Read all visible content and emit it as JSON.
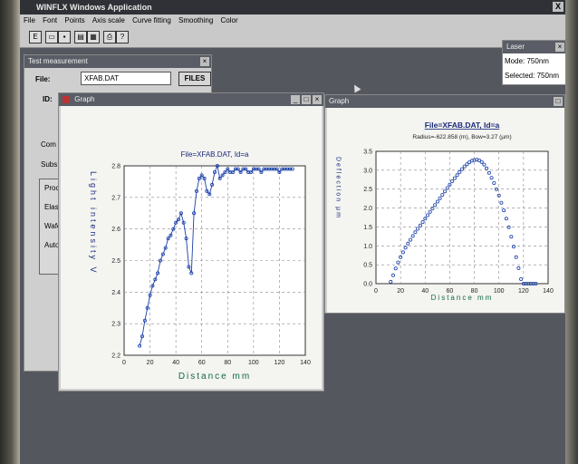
{
  "app": {
    "title": "WINFLX Windows Application",
    "close_glyph": "X"
  },
  "menu": [
    "File",
    "Font",
    "Points",
    "Axis scale",
    "Curve fitting",
    "Smoothing",
    "Color"
  ],
  "toolbar": [
    "E",
    "",
    "",
    "",
    "",
    "",
    "",
    "?"
  ],
  "laser": {
    "title": "Laser",
    "mode_label": "Mode:",
    "mode_value": "750nm",
    "selected_label": "Selected:",
    "selected_value": "750nm"
  },
  "test": {
    "title": "Test measurement",
    "file_label": "File:",
    "file_value": "XFAB.DAT",
    "files_button": "FILES",
    "id_label": "ID:",
    "partial_labels": [
      "Com",
      "Subs",
      "Proc",
      "Elast",
      "Wafe",
      "Auto"
    ]
  },
  "graph1": {
    "title": "Graph"
  },
  "graph2": {
    "title": "Graph"
  },
  "chart_data": [
    {
      "type": "line",
      "title": "File=XFAB.DAT, Id=a",
      "xlabel": "Distance mm",
      "ylabel": "Light intensity V",
      "xlim": [
        0,
        140
      ],
      "ylim": [
        2.2,
        2.8
      ],
      "xticks": [
        0,
        20,
        40,
        60,
        80,
        100,
        120,
        140
      ],
      "yticks": [
        2.2,
        2.3,
        2.4,
        2.5,
        2.6,
        2.7,
        2.8
      ],
      "grid": true,
      "x": [
        12,
        14,
        16,
        18,
        20,
        22,
        24,
        26,
        28,
        30,
        32,
        34,
        36,
        38,
        40,
        42,
        44,
        46,
        48,
        50,
        52,
        54,
        56,
        58,
        60,
        62,
        64,
        66,
        68,
        70,
        72,
        74,
        76,
        78,
        80,
        82,
        84,
        86,
        88,
        90,
        92,
        94,
        96,
        98,
        100,
        102,
        104,
        106,
        108,
        110,
        112,
        114,
        116,
        118,
        120,
        122,
        124,
        126,
        128,
        130
      ],
      "y": [
        2.23,
        2.26,
        2.31,
        2.35,
        2.39,
        2.42,
        2.44,
        2.46,
        2.5,
        2.52,
        2.54,
        2.57,
        2.58,
        2.6,
        2.62,
        2.63,
        2.65,
        2.62,
        2.57,
        2.48,
        2.46,
        2.65,
        2.72,
        2.76,
        2.77,
        2.76,
        2.72,
        2.71,
        2.74,
        2.78,
        2.8,
        2.76,
        2.77,
        2.78,
        2.79,
        2.78,
        2.78,
        2.79,
        2.79,
        2.78,
        2.79,
        2.79,
        2.78,
        2.78,
        2.79,
        2.79,
        2.79,
        2.78,
        2.79,
        2.79,
        2.79,
        2.79,
        2.79,
        2.79,
        2.78,
        2.79,
        2.79,
        2.79,
        2.79,
        2.79
      ]
    },
    {
      "type": "scatter",
      "title": "File=XFAB.DAT, Id=a",
      "subtitle": "Radius=-622.858 (m), Bow=3.27 (µm)",
      "xlabel": "Distance mm",
      "ylabel": "Deflection µm",
      "xlim": [
        0,
        140
      ],
      "ylim": [
        0,
        3.5
      ],
      "xticks": [
        0,
        20,
        40,
        60,
        80,
        100,
        120,
        140
      ],
      "yticks": [
        0.0,
        0.5,
        1.0,
        1.5,
        2.0,
        2.5,
        3.0,
        3.5
      ],
      "grid": true,
      "x": [
        12,
        14,
        16,
        18,
        20,
        22,
        24,
        26,
        28,
        30,
        32,
        34,
        36,
        38,
        40,
        42,
        44,
        46,
        48,
        50,
        52,
        54,
        56,
        58,
        60,
        62,
        64,
        66,
        68,
        70,
        72,
        74,
        76,
        78,
        80,
        82,
        84,
        86,
        88,
        90,
        92,
        94,
        96,
        98,
        100,
        102,
        104,
        106,
        108,
        110,
        112,
        114,
        116,
        118,
        120,
        122,
        124,
        126,
        128,
        130
      ],
      "y": [
        0.05,
        0.22,
        0.4,
        0.56,
        0.7,
        0.83,
        0.95,
        1.06,
        1.16,
        1.26,
        1.36,
        1.45,
        1.54,
        1.63,
        1.72,
        1.81,
        1.9,
        1.99,
        2.08,
        2.17,
        2.26,
        2.35,
        2.44,
        2.53,
        2.62,
        2.71,
        2.79,
        2.87,
        2.95,
        3.03,
        3.1,
        3.16,
        3.21,
        3.25,
        3.27,
        3.28,
        3.26,
        3.22,
        3.15,
        3.05,
        2.93,
        2.8,
        2.66,
        2.5,
        2.33,
        2.14,
        1.94,
        1.72,
        1.49,
        1.24,
        0.98,
        0.7,
        0.41,
        0.12,
        0,
        0,
        0,
        0,
        0,
        0
      ]
    }
  ]
}
